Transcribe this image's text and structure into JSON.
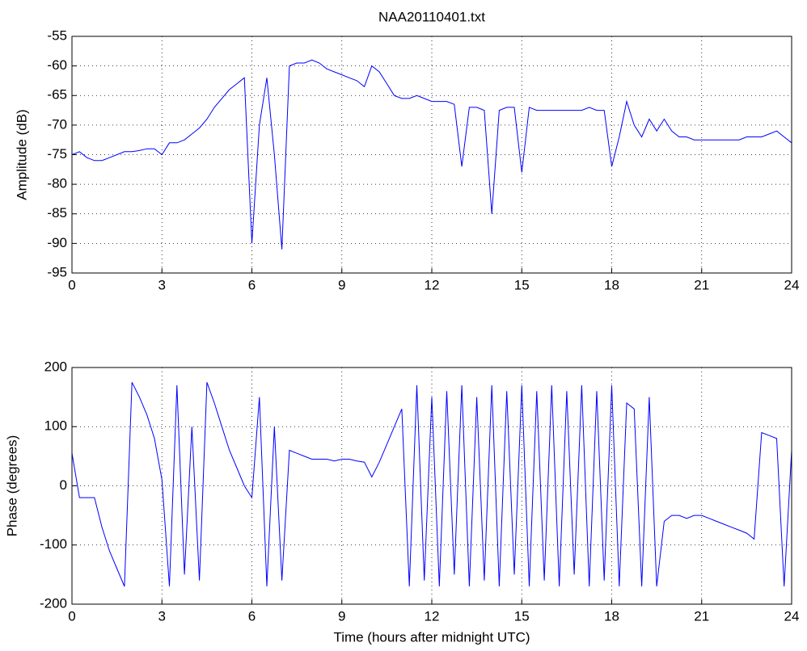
{
  "chart_data": [
    {
      "type": "line",
      "title": "NAA20110401.txt",
      "ylabel": "Amplitude (dB)",
      "color": "#0000ff",
      "grid": true,
      "x": [
        0,
        0.25,
        0.5,
        0.75,
        1,
        1.25,
        1.5,
        1.75,
        2,
        2.25,
        2.5,
        2.75,
        3,
        3.25,
        3.5,
        3.75,
        4,
        4.25,
        4.5,
        4.75,
        5,
        5.25,
        5.5,
        5.75,
        6,
        6.25,
        6.5,
        6.75,
        7,
        7.25,
        7.5,
        7.75,
        8,
        8.25,
        8.5,
        8.75,
        9,
        9.25,
        9.5,
        9.75,
        10,
        10.25,
        10.5,
        10.75,
        11,
        11.25,
        11.5,
        11.75,
        12,
        12.25,
        12.5,
        12.75,
        13,
        13.25,
        13.5,
        13.75,
        14,
        14.25,
        14.5,
        14.75,
        15,
        15.25,
        15.5,
        15.75,
        16,
        16.25,
        16.5,
        16.75,
        17,
        17.25,
        17.5,
        17.75,
        18,
        18.25,
        18.5,
        18.75,
        19,
        19.25,
        19.5,
        19.75,
        20,
        20.25,
        20.5,
        20.75,
        21,
        21.25,
        21.5,
        21.75,
        22,
        22.25,
        22.5,
        22.75,
        23,
        23.25,
        23.5,
        23.75,
        24
      ],
      "values": [
        -75,
        -74.5,
        -75.5,
        -76,
        -76,
        -75.5,
        -75,
        -74.5,
        -74.5,
        -74.3,
        -74,
        -74,
        -75,
        -73,
        -73,
        -72.5,
        -71.5,
        -70.5,
        -69,
        -67,
        -65.5,
        -64,
        -63,
        -62,
        -90,
        -70,
        -62,
        -75,
        -91,
        -60,
        -59.5,
        -59.5,
        -59,
        -59.5,
        -60.5,
        -61,
        -61.5,
        -62,
        -62.5,
        -63.5,
        -60,
        -61,
        -63,
        -65,
        -65.5,
        -65.5,
        -65,
        -65.5,
        -66,
        -66,
        -66,
        -66.5,
        -77,
        -67,
        -67,
        -67.5,
        -85,
        -67.5,
        -67,
        -67,
        -78,
        -67,
        -67.5,
        -67.5,
        -67.5,
        -67.5,
        -67.5,
        -67.5,
        -67.5,
        -67,
        -67.5,
        -67.5,
        -77,
        -72,
        -66,
        -70,
        -72,
        -69,
        -71,
        -69,
        -71,
        -72,
        -72,
        -72.5,
        -72.5,
        -72.5,
        -72.5,
        -72.5,
        -72.5,
        -72.5,
        -72,
        -72,
        -72,
        -71.5,
        -71,
        -72,
        -73
      ],
      "xlim": [
        0,
        24
      ],
      "xticks": [
        0,
        3,
        6,
        9,
        12,
        15,
        18,
        21,
        24
      ],
      "ylim": [
        -95,
        -55
      ],
      "yticks": [
        -95,
        -90,
        -85,
        -80,
        -75,
        -70,
        -65,
        -60,
        -55
      ]
    },
    {
      "type": "line",
      "ylabel": "Phase (degrees)",
      "xlabel": "Time (hours after midnight UTC)",
      "color": "#0000ff",
      "grid": true,
      "x": [
        0,
        0.25,
        0.5,
        0.75,
        1,
        1.25,
        1.5,
        1.75,
        2,
        2.25,
        2.5,
        2.75,
        3,
        3.25,
        3.5,
        3.75,
        4,
        4.25,
        4.5,
        4.75,
        5,
        5.25,
        5.5,
        5.75,
        6,
        6.25,
        6.5,
        6.75,
        7,
        7.25,
        7.5,
        7.75,
        8,
        8.25,
        8.5,
        8.75,
        9,
        9.25,
        9.5,
        9.75,
        10,
        10.25,
        10.5,
        10.75,
        11,
        11.25,
        11.5,
        11.75,
        12,
        12.25,
        12.5,
        12.75,
        13,
        13.25,
        13.5,
        13.75,
        14,
        14.25,
        14.5,
        14.75,
        15,
        15.25,
        15.5,
        15.75,
        16,
        16.25,
        16.5,
        16.75,
        17,
        17.25,
        17.5,
        17.75,
        18,
        18.25,
        18.5,
        18.75,
        19,
        19.25,
        19.5,
        19.75,
        20,
        20.25,
        20.5,
        20.75,
        21,
        21.25,
        21.5,
        21.75,
        22,
        22.25,
        22.5,
        22.75,
        23,
        23.25,
        23.5,
        23.75,
        24
      ],
      "values": [
        55,
        -20,
        -20,
        -20,
        -70,
        -110,
        -140,
        -170,
        175,
        150,
        120,
        80,
        10,
        -170,
        170,
        -150,
        100,
        -160,
        175,
        140,
        100,
        60,
        30,
        0,
        -20,
        150,
        -170,
        100,
        -160,
        60,
        55,
        50,
        45,
        45,
        45,
        42,
        45,
        45,
        42,
        40,
        15,
        40,
        70,
        100,
        130,
        -170,
        170,
        -160,
        150,
        -170,
        160,
        -150,
        170,
        -170,
        150,
        -160,
        170,
        -170,
        160,
        -150,
        170,
        -170,
        160,
        -160,
        170,
        -170,
        160,
        -150,
        170,
        -170,
        160,
        -160,
        170,
        -170,
        140,
        130,
        -170,
        150,
        -170,
        -60,
        -50,
        -50,
        -55,
        -50,
        -50,
        -55,
        -60,
        -65,
        -70,
        -75,
        -80,
        -90,
        90,
        85,
        80,
        -170,
        60
      ],
      "xlim": [
        0,
        24
      ],
      "xticks": [
        0,
        3,
        6,
        9,
        12,
        15,
        18,
        21,
        24
      ],
      "ylim": [
        -200,
        200
      ],
      "yticks": [
        -200,
        -100,
        0,
        100,
        200
      ]
    }
  ]
}
